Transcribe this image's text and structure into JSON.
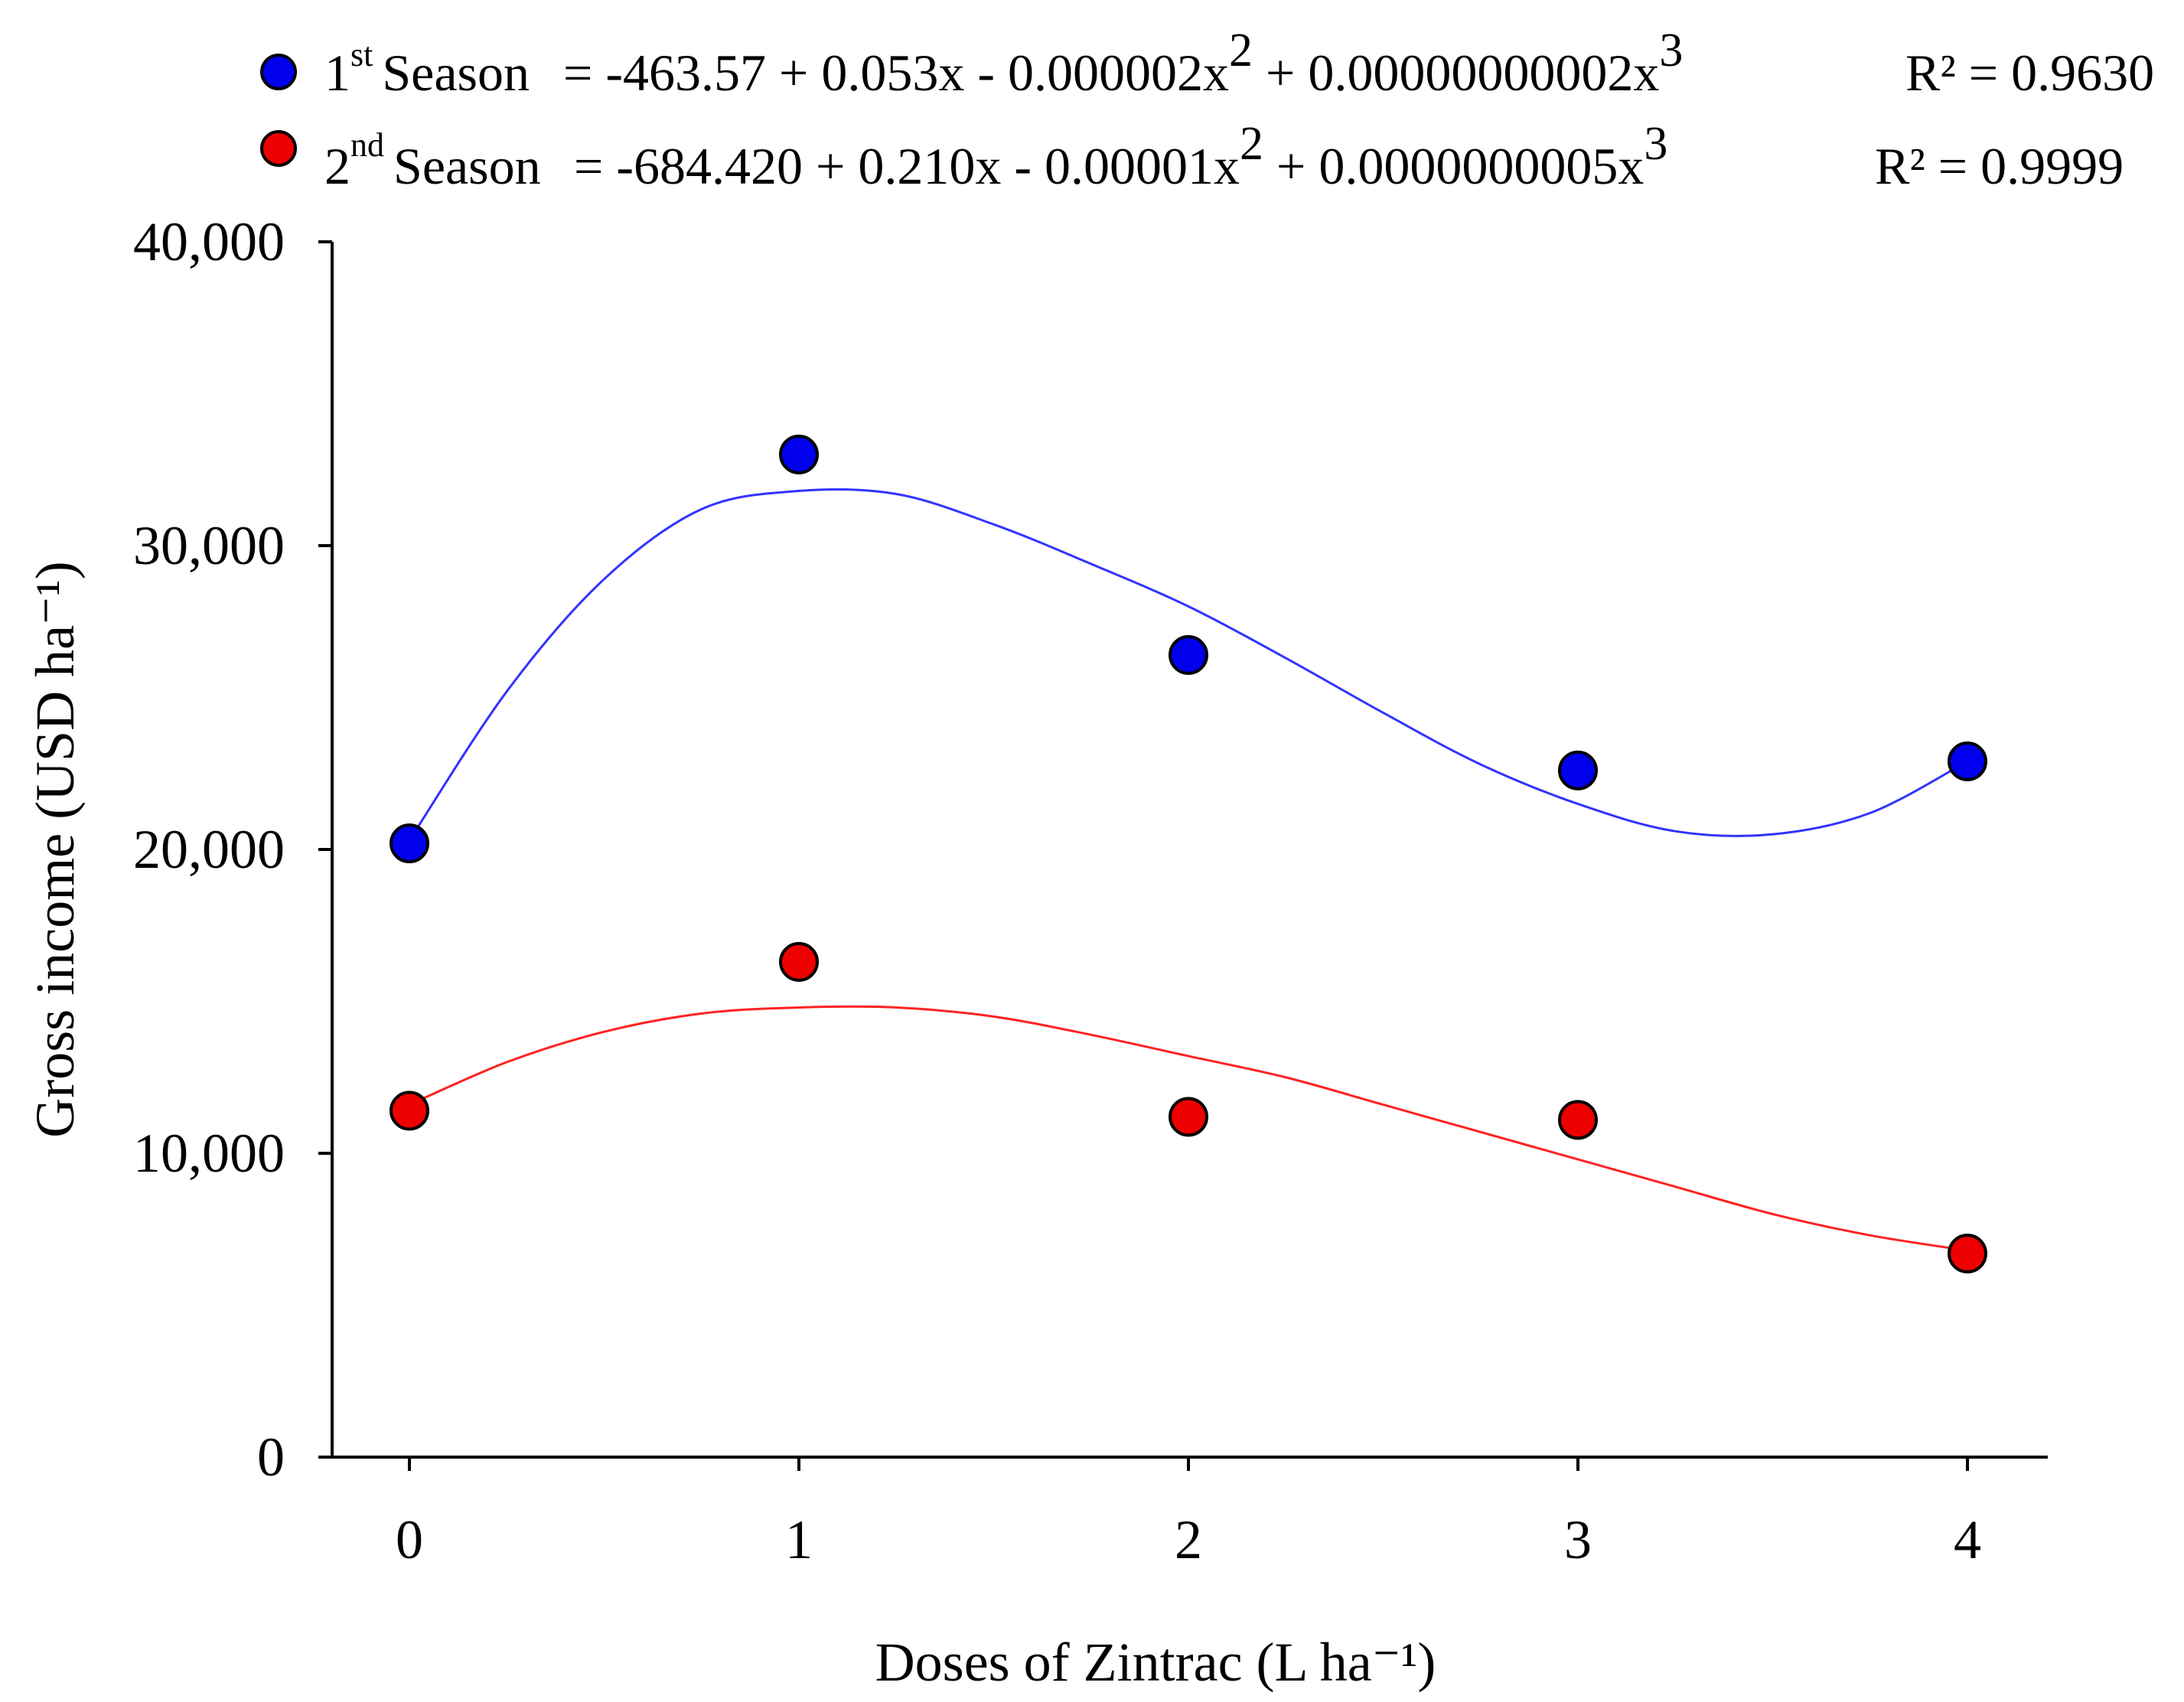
{
  "chart_data": {
    "type": "scatter",
    "title": "",
    "xlabel": "Doses of Zintrac (L ha⁻¹)",
    "ylabel": "Gross income (USD ha⁻¹)",
    "x": [
      0,
      1,
      2,
      3,
      4
    ],
    "xticks": [
      0,
      1,
      2,
      3,
      4
    ],
    "xtick_labels": [
      "0",
      "1",
      "2",
      "3",
      "4"
    ],
    "xlim": [
      -0.2,
      4.2
    ],
    "ylim": [
      0,
      40000
    ],
    "yticks": [
      0,
      10000,
      20000,
      30000,
      40000
    ],
    "ytick_labels": [
      "0",
      "10,000",
      "20,000",
      "30,000",
      "40,000"
    ],
    "grid": false,
    "legend_position": "top",
    "series": [
      {
        "name": "1st Season",
        "label_base": "1",
        "label_sup": "st",
        "label_word": "Season",
        "color": "#0000ee",
        "line_color": "#3333ff",
        "values": [
          20200,
          33000,
          26400,
          22600,
          22900
        ],
        "equation": {
          "lhs": "= -463.57 + 0.053x - 0.000002x",
          "exp1": "2",
          "mid": " + 0.00000000002x",
          "exp2": "3"
        },
        "r2": "R² = 0.9630",
        "fit_curve": [
          [
            0.0,
            20300
          ],
          [
            0.25,
            25200
          ],
          [
            0.5,
            28900
          ],
          [
            0.75,
            31200
          ],
          [
            1.0,
            31800
          ],
          [
            1.25,
            31700
          ],
          [
            1.5,
            30700
          ],
          [
            1.75,
            29400
          ],
          [
            2.0,
            28000
          ],
          [
            2.25,
            26300
          ],
          [
            2.5,
            24500
          ],
          [
            2.75,
            22800
          ],
          [
            3.0,
            21500
          ],
          [
            3.25,
            20600
          ],
          [
            3.5,
            20500
          ],
          [
            3.75,
            21200
          ],
          [
            4.0,
            22900
          ]
        ]
      },
      {
        "name": "2nd Season",
        "label_base": "2",
        "label_sup": "nd",
        "label_word": "Season",
        "color": "#ee0000",
        "line_color": "#ff2222",
        "values": [
          11400,
          16300,
          11200,
          11100,
          6700
        ],
        "equation": {
          "lhs": "= -684.420 + 0.210x - 0.00001x",
          "exp1": "2",
          "mid": " + 0.0000000005x",
          "exp2": "3"
        },
        "r2": "R² = 0.9999",
        "fit_curve": [
          [
            0.0,
            11600
          ],
          [
            0.25,
            13000
          ],
          [
            0.5,
            14000
          ],
          [
            0.75,
            14600
          ],
          [
            1.0,
            14800
          ],
          [
            1.25,
            14800
          ],
          [
            1.5,
            14500
          ],
          [
            1.75,
            13900
          ],
          [
            2.0,
            13200
          ],
          [
            2.25,
            12500
          ],
          [
            2.5,
            11600
          ],
          [
            2.75,
            10700
          ],
          [
            3.0,
            9800
          ],
          [
            3.25,
            8900
          ],
          [
            3.5,
            8000
          ],
          [
            3.75,
            7300
          ],
          [
            4.0,
            6800
          ]
        ]
      }
    ]
  }
}
